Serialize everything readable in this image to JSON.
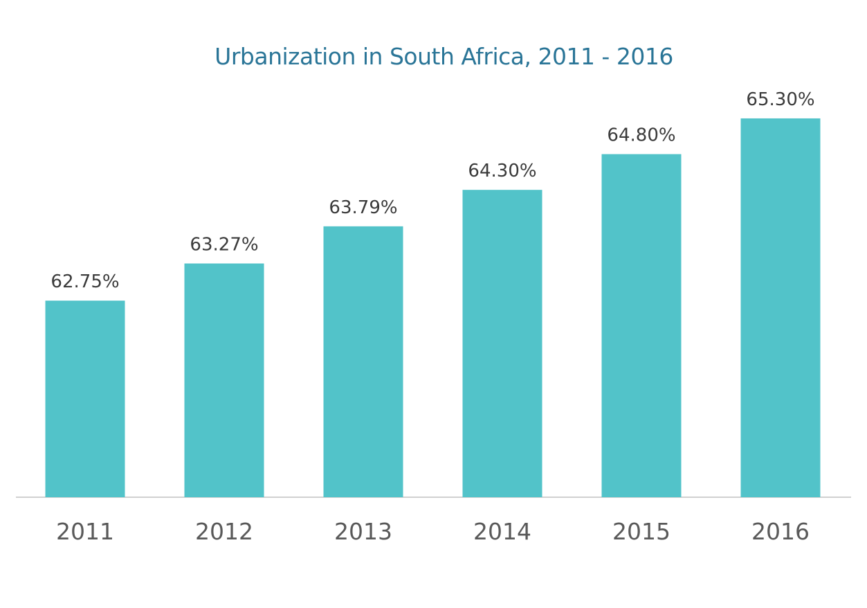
{
  "chart_data": {
    "type": "bar",
    "title": "Urbanization in South Africa, 2011 - 2016",
    "xlabel": "",
    "ylabel": "",
    "categories": [
      "2011",
      "2012",
      "2013",
      "2014",
      "2015",
      "2016"
    ],
    "values": [
      62.75,
      63.27,
      63.79,
      64.3,
      64.8,
      65.3
    ],
    "data_labels": [
      "62.75%",
      "63.27%",
      "63.79%",
      "64.30%",
      "64.80%",
      "65.30%"
    ],
    "ylim": [
      60.0,
      65.6
    ],
    "grid": false,
    "legend": "none",
    "colors": {
      "bar": "#52c3c9",
      "title": "#2a7597",
      "axis": "#d0d0d0",
      "data_label": "#3a3a3a",
      "tick_label": "#595959"
    }
  }
}
